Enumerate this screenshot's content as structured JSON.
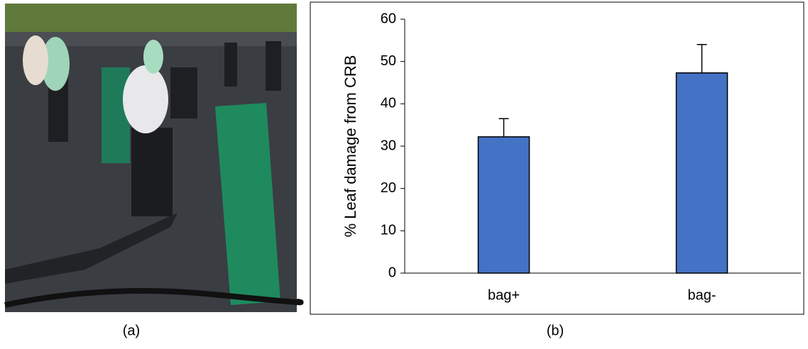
{
  "chart_data": {
    "type": "bar",
    "ylabel": "% Leaf damage from CRB",
    "categories": [
      "bag+",
      "bag-"
    ],
    "values": [
      32.2,
      47.3
    ],
    "errors": [
      4.3,
      6.7
    ],
    "color": "#4472c4",
    "ylim": [
      0,
      60
    ],
    "yticks": [
      0,
      10,
      20,
      30,
      40,
      50,
      60
    ],
    "grid": false
  },
  "captions": [
    "(a)",
    "(b)"
  ]
}
